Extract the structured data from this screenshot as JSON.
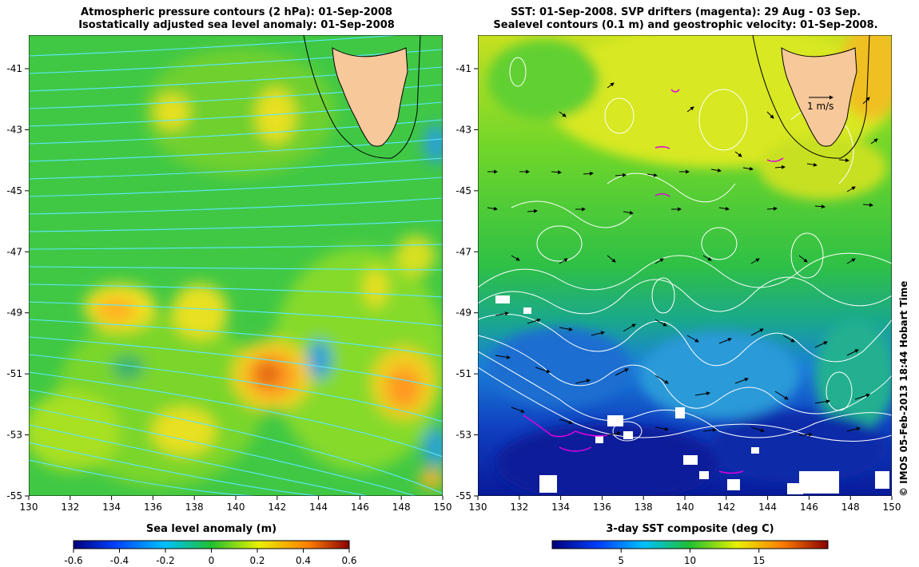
{
  "left_panel": {
    "title_line1": "Atmospheric pressure contours (2 hPa): 01-Sep-2008",
    "title_line2": "Isostatically adjusted sea level anomaly: 01-Sep-2008",
    "x_ticks": [
      "130",
      "132",
      "134",
      "136",
      "138",
      "140",
      "142",
      "144",
      "146",
      "148",
      "150"
    ],
    "y_ticks": [
      "-41",
      "-43",
      "-45",
      "-47",
      "-49",
      "-51",
      "-53",
      "-55"
    ],
    "colorbar": {
      "label": "Sea level anomaly (m)",
      "ticks": [
        "-0.6",
        "-0.4",
        "-0.2",
        "0",
        "0.2",
        "0.4",
        "0.6"
      ]
    }
  },
  "right_panel": {
    "title_line1": "SST: 01-Sep-2008. SVP drifters (magenta): 29 Aug - 03 Sep.",
    "title_line2": "Sealevel contours (0.1 m) and geostrophic velocity: 01-Sep-2008.",
    "x_ticks": [
      "130",
      "132",
      "134",
      "136",
      "138",
      "140",
      "142",
      "144",
      "146",
      "148",
      "150"
    ],
    "y_ticks": [
      "-41",
      "-43",
      "-45",
      "-47",
      "-49",
      "-51",
      "-53",
      "-55"
    ],
    "scale_arrow_label": "1 m/s",
    "colorbar": {
      "label": "3-day SST composite (deg C)",
      "ticks": [
        "5",
        "10",
        "15"
      ]
    }
  },
  "credit": "© IMOS 05-Feb-2013 18:44 Hobart Time",
  "colors": {
    "land": "#f6c89a",
    "ocean_mid": "#2fc832",
    "cold": "#0010a0",
    "warm": "#ff9a20",
    "contour_cyan": "#5fe6ff",
    "contour_white": "#ffffff",
    "drifter_magenta": "#e000e0"
  }
}
